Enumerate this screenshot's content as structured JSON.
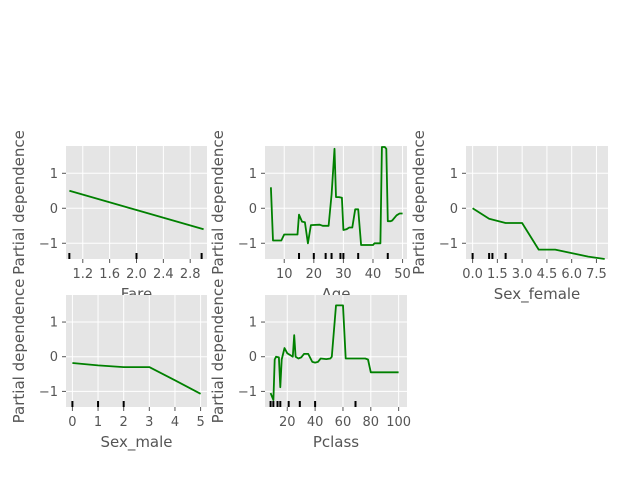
{
  "colors": {
    "panel_bg": "#e5e5e5",
    "grid": "#ffffff",
    "line": "#008000",
    "rug": "#000000",
    "text": "#555555"
  },
  "chart_data": [
    {
      "type": "line",
      "xlabel": "Fare",
      "ylabel": "Partial dependence",
      "xlim": [
        0.95,
        3.05
      ],
      "ylim": [
        -1.45,
        1.78
      ],
      "xticks": [
        1.2,
        1.6,
        2.0,
        2.4,
        2.8
      ],
      "xtick_labels": [
        "1.2",
        "1.6",
        "2.0",
        "2.4",
        "2.8"
      ],
      "yticks": [
        -1,
        0,
        1
      ],
      "ytick_labels": [
        "−1",
        "0",
        "1"
      ],
      "grid": true,
      "x": [
        1.0,
        2.0,
        3.0
      ],
      "y": [
        0.5,
        -0.05,
        -0.6
      ],
      "rug": [
        1.0,
        2.0,
        2.97
      ]
    },
    {
      "type": "line",
      "xlabel": "Age",
      "ylabel": "Partial dependence",
      "xlim": [
        3.5,
        51.5
      ],
      "ylim": [
        -1.45,
        1.78
      ],
      "xticks": [
        10,
        20,
        30,
        40,
        50
      ],
      "xtick_labels": [
        "10",
        "20",
        "30",
        "40",
        "50"
      ],
      "yticks": [
        -1,
        0,
        1
      ],
      "ytick_labels": [
        "−1",
        "0",
        "1"
      ],
      "grid": true,
      "x": [
        5.5,
        6.2,
        9,
        10,
        14.5,
        15,
        16,
        17,
        18,
        19,
        22,
        23,
        25,
        26,
        27,
        27.5,
        28.5,
        29.5,
        30,
        31,
        32,
        33,
        34,
        34.5,
        35,
        36,
        36.5,
        40,
        40.5,
        42.5,
        43,
        44,
        44.5,
        45,
        46,
        46.5,
        48,
        49,
        50
      ],
      "y": [
        0.6,
        -0.92,
        -0.92,
        -0.75,
        -0.75,
        -0.18,
        -0.38,
        -0.4,
        -1.0,
        -0.48,
        -0.47,
        -0.5,
        -0.5,
        0.4,
        1.7,
        0.32,
        0.32,
        0.3,
        -0.62,
        -0.6,
        -0.55,
        -0.55,
        -0.03,
        -0.03,
        -0.03,
        -1.05,
        -1.05,
        -1.05,
        -1.0,
        -1.0,
        1.75,
        1.75,
        1.7,
        -0.37,
        -0.37,
        -0.35,
        -0.2,
        -0.15,
        -0.15
      ],
      "rug": [
        15,
        20,
        24,
        26,
        29,
        30,
        35,
        45
      ]
    },
    {
      "type": "line",
      "xlabel": "Sex_female",
      "ylabel": "Partial dependence",
      "xlim": [
        -0.4,
        8.2
      ],
      "ylim": [
        -1.45,
        1.78
      ],
      "xticks": [
        0.0,
        1.5,
        3.0,
        4.5,
        6.0,
        7.5
      ],
      "xtick_labels": [
        "0.0",
        "1.5",
        "3.0",
        "4.5",
        "6.0",
        "7.5"
      ],
      "yticks": [
        -1,
        0,
        1
      ],
      "ytick_labels": [
        "−1",
        "0",
        "1"
      ],
      "grid": true,
      "x": [
        0,
        1,
        2,
        3,
        4,
        5,
        6,
        7,
        8
      ],
      "y": [
        0.0,
        -0.3,
        -0.42,
        -0.42,
        -1.18,
        -1.18,
        -1.28,
        -1.38,
        -1.45
      ],
      "rug": [
        0,
        1,
        1.2,
        2
      ]
    },
    {
      "type": "line",
      "xlabel": "Sex_male",
      "ylabel": "Partial dependence",
      "xlim": [
        -0.25,
        5.25
      ],
      "ylim": [
        -1.45,
        1.78
      ],
      "xticks": [
        0,
        1,
        2,
        3,
        4,
        5
      ],
      "xtick_labels": [
        "0",
        "1",
        "2",
        "3",
        "4",
        "5"
      ],
      "yticks": [
        -1,
        0,
        1
      ],
      "ytick_labels": [
        "−1",
        "0",
        "1"
      ],
      "grid": true,
      "x": [
        0,
        1,
        2,
        3,
        4,
        5
      ],
      "y": [
        -0.18,
        -0.25,
        -0.3,
        -0.3,
        -0.68,
        -1.07
      ],
      "rug": [
        0,
        1,
        2
      ]
    },
    {
      "type": "line",
      "xlabel": "Pclass",
      "ylabel": "Partial dependence",
      "xlim": [
        4,
        106
      ],
      "ylim": [
        -1.45,
        1.78
      ],
      "xticks": [
        20,
        40,
        60,
        80,
        100
      ],
      "xtick_labels": [
        "20",
        "40",
        "60",
        "80",
        "100"
      ],
      "yticks": [
        -1,
        0,
        1
      ],
      "ytick_labels": [
        "−1",
        "0",
        "1"
      ],
      "grid": true,
      "x": [
        8,
        10,
        11,
        12,
        14,
        15,
        16,
        18,
        20,
        22,
        24,
        25,
        26,
        28,
        30,
        32,
        35,
        38,
        40,
        42,
        44,
        48,
        51,
        52,
        55,
        56,
        57,
        60,
        62,
        64,
        70,
        76,
        78,
        80,
        90,
        100
      ],
      "y": [
        -1.05,
        -1.25,
        -0.08,
        0.0,
        -0.02,
        -0.88,
        -0.08,
        0.25,
        0.1,
        0.05,
        0.0,
        0.62,
        0.0,
        -0.05,
        -0.02,
        0.08,
        0.08,
        -0.15,
        -0.17,
        -0.15,
        -0.05,
        -0.07,
        -0.05,
        0.0,
        1.48,
        1.48,
        1.48,
        1.48,
        -0.05,
        -0.05,
        -0.05,
        -0.05,
        -0.08,
        -0.45,
        -0.45,
        -0.45
      ],
      "rug": [
        8,
        10,
        13,
        15,
        21,
        29,
        40,
        69
      ]
    }
  ]
}
